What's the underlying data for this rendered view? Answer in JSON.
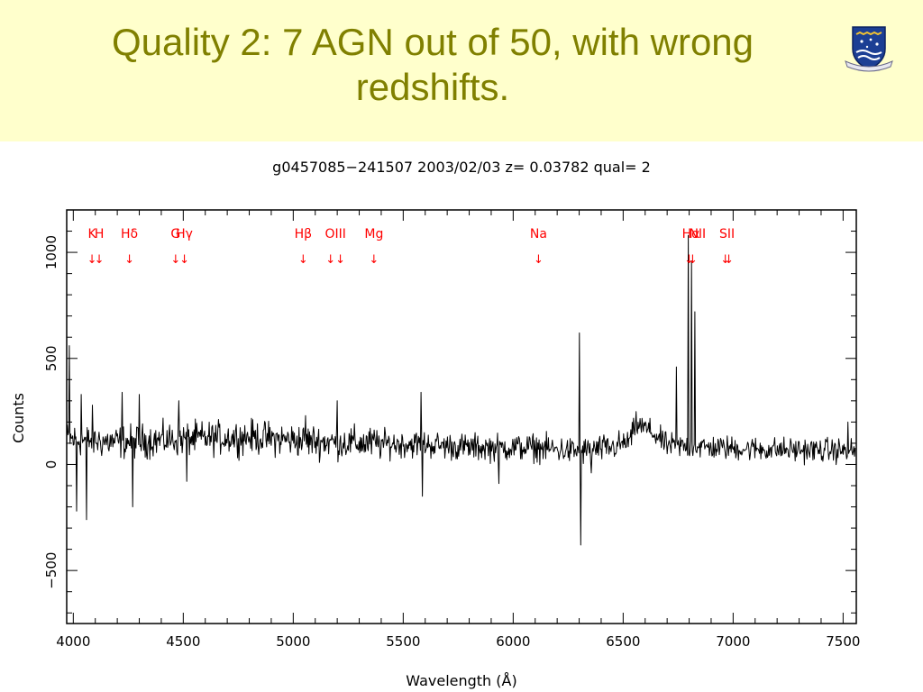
{
  "slide": {
    "title_line1": "Quality 2: 7 AGN out of 50, with wrong",
    "title_line2": "redshifts.",
    "logo_icon": "university-crest-icon"
  },
  "colors": {
    "title": "#808000",
    "header_background": "#ffffcc",
    "line_markers": "#ff0000",
    "spectrum": "#000000"
  },
  "chart_data": {
    "type": "line",
    "title": "g0457085−241507 2003/02/03 z= 0.03782 qual= 2",
    "xlabel": "Wavelength (Å)",
    "ylabel": "Counts",
    "xlim": [
      3970,
      7560
    ],
    "ylim": [
      -750,
      1200
    ],
    "xticks": [
      4000,
      4500,
      5000,
      5500,
      6000,
      6500,
      7000,
      7500
    ],
    "xtick_labels": [
      "4000",
      "4500",
      "5000",
      "5500",
      "6000",
      "6500",
      "7000",
      "7500"
    ],
    "yticks": [
      -500,
      0,
      500,
      1000
    ],
    "ytick_labels": [
      "−500",
      "0",
      "500",
      "1000"
    ],
    "grid": false,
    "spectrum": {
      "x_start": 3970,
      "x_end": 7555,
      "continuum_knots": [
        [
          3970,
          120
        ],
        [
          4200,
          105
        ],
        [
          4500,
          120
        ],
        [
          4800,
          130
        ],
        [
          5000,
          115
        ],
        [
          5300,
          100
        ],
        [
          5600,
          95
        ],
        [
          5800,
          80
        ],
        [
          6100,
          80
        ],
        [
          6300,
          60
        ],
        [
          6450,
          80
        ],
        [
          6530,
          110
        ],
        [
          6560,
          190
        ],
        [
          6620,
          160
        ],
        [
          6700,
          90
        ],
        [
          6900,
          80
        ],
        [
          7200,
          70
        ],
        [
          7555,
          65
        ]
      ],
      "spikes": [
        [
          3980,
          560
        ],
        [
          4015,
          -220
        ],
        [
          4035,
          330
        ],
        [
          4058,
          -260
        ],
        [
          4085,
          280
        ],
        [
          4220,
          340
        ],
        [
          4270,
          -200
        ],
        [
          4300,
          330
        ],
        [
          4480,
          300
        ],
        [
          4515,
          -80
        ],
        [
          5055,
          230
        ],
        [
          5200,
          300
        ],
        [
          5580,
          340
        ],
        [
          5585,
          -150
        ],
        [
          5935,
          -90
        ],
        [
          6300,
          620
        ],
        [
          6305,
          -380
        ],
        [
          6355,
          -40
        ],
        [
          6740,
          460
        ],
        [
          6795,
          1080
        ],
        [
          6810,
          960
        ],
        [
          6825,
          720
        ],
        [
          7520,
          200
        ]
      ]
    },
    "line_markers": [
      {
        "label": "K",
        "wavelength": 4085,
        "arrows": "↓"
      },
      {
        "label": "H",
        "wavelength": 4118,
        "arrows": "↓"
      },
      {
        "label": "Hδ",
        "wavelength": 4255,
        "arrows": "↓"
      },
      {
        "label": "G",
        "wavelength": 4465,
        "arrows": "↓"
      },
      {
        "label": "Hγ",
        "wavelength": 4505,
        "arrows": "↓"
      },
      {
        "label": "Hβ",
        "wavelength": 5045,
        "arrows": "↓"
      },
      {
        "label": "OIII",
        "wavelength": 5192,
        "arrows": "↓↓"
      },
      {
        "label": "Mg",
        "wavelength": 5367,
        "arrows": "↓"
      },
      {
        "label": "Na",
        "wavelength": 6115,
        "arrows": "↓"
      },
      {
        "label": "Hα",
        "wavelength": 6808,
        "arrows": "⇊"
      },
      {
        "label": "NII",
        "wavelength": 6838,
        "arrows": ""
      },
      {
        "label": "SII",
        "wavelength": 6972,
        "arrows": "⇊"
      }
    ]
  }
}
